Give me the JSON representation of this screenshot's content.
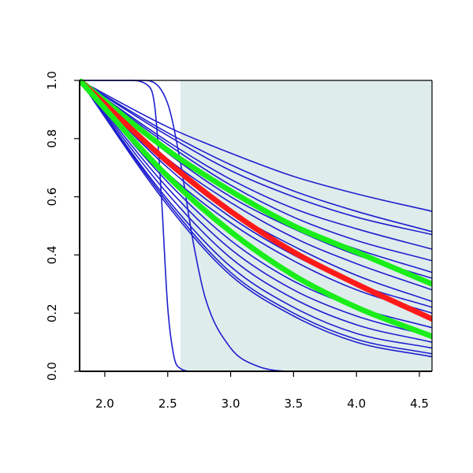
{
  "chart_data": {
    "type": "line",
    "title": "",
    "xlabel": "",
    "ylabel": "",
    "xlim": [
      1.8,
      4.6
    ],
    "ylim": [
      0.0,
      1.0
    ],
    "x_ticks": [
      "2.0",
      "2.5",
      "3.0",
      "3.5",
      "4.0",
      "4.5"
    ],
    "y_ticks": [
      "0.0",
      "0.2",
      "0.4",
      "0.6",
      "0.8",
      "1.0"
    ],
    "shaded_region": {
      "x_start": 2.6,
      "x_end": 4.6,
      "color": "#dfecec"
    },
    "colors": {
      "background_curves": "#1f1fcf",
      "highlight_red": "#ff1a1a",
      "highlight_green": "#1aee1a"
    },
    "series": [
      {
        "color": "blue",
        "x": [
          1.8,
          2.5,
          3.0,
          3.5,
          4.0,
          4.6
        ],
        "y": [
          1.0,
          0.84,
          0.75,
          0.67,
          0.61,
          0.55
        ]
      },
      {
        "color": "blue",
        "x": [
          1.8,
          2.5,
          3.0,
          3.5,
          4.0,
          4.6
        ],
        "y": [
          1.0,
          0.82,
          0.71,
          0.62,
          0.55,
          0.48
        ]
      },
      {
        "color": "blue",
        "x": [
          1.8,
          2.5,
          3.0,
          3.5,
          4.0,
          4.6
        ],
        "y": [
          1.0,
          0.81,
          0.69,
          0.6,
          0.53,
          0.47
        ]
      },
      {
        "color": "blue",
        "x": [
          1.8,
          2.5,
          3.0,
          3.5,
          4.0,
          4.6
        ],
        "y": [
          1.0,
          0.79,
          0.66,
          0.56,
          0.49,
          0.42
        ]
      },
      {
        "color": "blue",
        "x": [
          1.8,
          2.5,
          3.0,
          3.5,
          4.0,
          4.6
        ],
        "y": [
          1.0,
          0.78,
          0.64,
          0.53,
          0.45,
          0.38
        ]
      },
      {
        "color": "blue",
        "x": [
          1.8,
          2.5,
          3.0,
          3.5,
          4.0,
          4.6
        ],
        "y": [
          1.0,
          0.76,
          0.62,
          0.5,
          0.42,
          0.34
        ]
      },
      {
        "color": "blue",
        "x": [
          1.8,
          2.5,
          3.0,
          3.5,
          4.0,
          4.6
        ],
        "y": [
          1.0,
          0.75,
          0.6,
          0.49,
          0.4,
          0.32
        ]
      },
      {
        "color": "blue",
        "x": [
          1.8,
          2.5,
          3.0,
          3.5,
          4.0,
          4.6
        ],
        "y": [
          1.0,
          0.73,
          0.58,
          0.46,
          0.37,
          0.28
        ]
      },
      {
        "color": "blue",
        "x": [
          1.8,
          2.5,
          3.0,
          3.5,
          4.0,
          4.6
        ],
        "y": [
          1.0,
          0.71,
          0.55,
          0.43,
          0.33,
          0.24
        ]
      },
      {
        "color": "blue",
        "x": [
          1.8,
          2.5,
          3.0,
          3.5,
          4.0,
          4.6
        ],
        "y": [
          1.0,
          0.7,
          0.53,
          0.4,
          0.3,
          0.22
        ]
      },
      {
        "color": "blue",
        "x": [
          1.8,
          2.5,
          3.0,
          3.5,
          4.0,
          4.6
        ],
        "y": [
          1.0,
          0.68,
          0.51,
          0.38,
          0.28,
          0.2
        ]
      },
      {
        "color": "blue",
        "x": [
          1.8,
          2.5,
          3.0,
          3.5,
          4.0,
          4.6
        ],
        "y": [
          1.0,
          0.65,
          0.45,
          0.31,
          0.22,
          0.15
        ]
      },
      {
        "color": "blue",
        "x": [
          1.8,
          2.5,
          3.0,
          3.5,
          4.0,
          4.6
        ],
        "y": [
          1.0,
          0.63,
          0.42,
          0.28,
          0.19,
          0.12
        ]
      },
      {
        "color": "blue",
        "x": [
          1.8,
          2.5,
          3.0,
          3.5,
          4.0,
          4.6
        ],
        "y": [
          1.0,
          0.61,
          0.39,
          0.25,
          0.16,
          0.1
        ]
      },
      {
        "color": "blue",
        "x": [
          1.8,
          2.5,
          3.0,
          3.5,
          4.0,
          4.6
        ],
        "y": [
          1.0,
          0.59,
          0.36,
          0.22,
          0.13,
          0.08
        ]
      },
      {
        "color": "blue",
        "x": [
          1.8,
          2.5,
          3.0,
          3.5,
          4.0,
          4.6
        ],
        "y": [
          1.0,
          0.58,
          0.34,
          0.2,
          0.11,
          0.06
        ]
      },
      {
        "color": "blue",
        "x": [
          1.8,
          2.5,
          3.0,
          3.5,
          4.0,
          4.6
        ],
        "y": [
          1.0,
          0.57,
          0.33,
          0.19,
          0.1,
          0.05
        ]
      },
      {
        "color": "blue",
        "x": [
          1.8,
          2.2,
          2.35,
          2.4,
          2.45,
          2.5,
          2.55,
          2.6,
          2.7,
          4.6
        ],
        "y": [
          1.0,
          1.0,
          0.98,
          0.9,
          0.6,
          0.22,
          0.05,
          0.01,
          0.0,
          0.0
        ]
      },
      {
        "color": "blue",
        "x": [
          1.8,
          2.3,
          2.5,
          2.6,
          2.7,
          2.8,
          3.0,
          3.2,
          3.5,
          4.6
        ],
        "y": [
          1.0,
          1.0,
          0.92,
          0.72,
          0.45,
          0.25,
          0.08,
          0.02,
          0.0,
          0.0
        ]
      },
      {
        "color": "green",
        "x": [
          1.8,
          2.5,
          3.0,
          3.5,
          4.0,
          4.6
        ],
        "y": [
          1.0,
          0.76,
          0.62,
          0.5,
          0.41,
          0.3
        ]
      },
      {
        "color": "red",
        "x": [
          1.8,
          2.5,
          3.0,
          3.5,
          4.0,
          4.6
        ],
        "y": [
          1.0,
          0.72,
          0.55,
          0.41,
          0.3,
          0.18
        ]
      },
      {
        "color": "green",
        "x": [
          1.8,
          2.5,
          3.0,
          3.5,
          4.0,
          4.6
        ],
        "y": [
          1.0,
          0.67,
          0.48,
          0.33,
          0.22,
          0.12
        ]
      }
    ]
  }
}
